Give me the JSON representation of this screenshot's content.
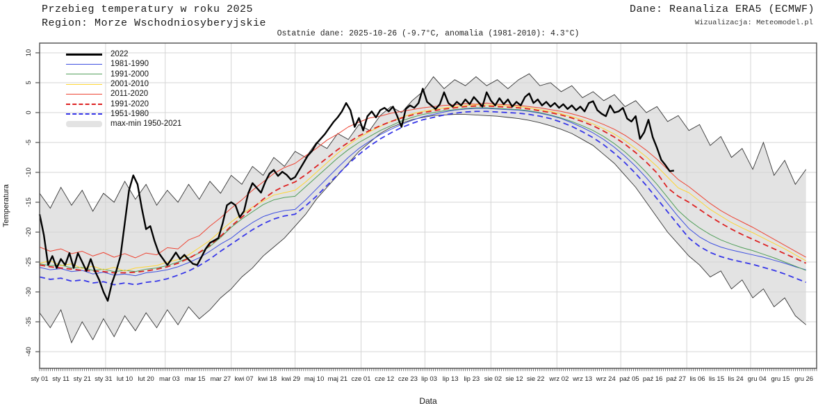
{
  "header": {
    "title": "Przebieg temperatury w roku 2025",
    "region": "Region: Morze Wschodniosyberyjskie",
    "source": "Dane: Reanaliza ERA5 (ECMWF)",
    "visualization": "Wizualizacja: Meteomodel.pl",
    "last_data": "Ostatnie dane: 2025-10-26 (-9.7°C, anomalia (1981-2010): 4.3°C)"
  },
  "chart_data": {
    "type": "line",
    "title": "Przebieg temperatury w roku 2025",
    "xlabel": "Data",
    "ylabel": "Temperatura",
    "ylim": [
      -42.5,
      12
    ],
    "days_in_year": 365,
    "grid": true,
    "legend_position": "top-left",
    "yticks": [
      10,
      5,
      0,
      -5,
      -10,
      -15,
      -20,
      -25,
      -30,
      -35,
      -40
    ],
    "xticks": {
      "days": [
        0,
        10,
        20,
        30,
        40,
        50,
        61,
        73,
        85,
        96,
        107,
        118,
        129,
        140,
        151,
        162,
        173,
        183,
        193,
        203,
        213,
        223,
        233,
        244,
        255,
        266,
        277,
        288,
        299,
        309,
        318,
        327,
        337,
        348,
        359
      ],
      "labels": [
        "sty 01",
        "sty 11",
        "sty 21",
        "sty 31",
        "lut 10",
        "lut 20",
        "mar 03",
        "mar 15",
        "mar 27",
        "kwi 07",
        "kwi 18",
        "kwi 29",
        "maj 10",
        "maj 21",
        "cze 01",
        "cze 12",
        "cze 23",
        "lip 03",
        "lip 13",
        "lip 23",
        "sie 02",
        "sie 12",
        "sie 22",
        "wrz 02",
        "wrz 13",
        "wrz 24",
        "paź 05",
        "paź 16",
        "paź 27",
        "lis 06",
        "lis 15",
        "lis 24",
        "gru 04",
        "gru 15",
        "gru 26"
      ]
    },
    "month_grid_days": [
      31,
      59,
      90,
      120,
      151,
      181,
      212,
      243,
      273,
      304,
      334
    ],
    "band": {
      "name": "max-min 1950-2021",
      "fill": "#e3e3e3",
      "edge_color": "#333333",
      "step_days": 5,
      "max": [
        -13.5,
        -16.0,
        -12.5,
        -15.5,
        -13.0,
        -16.5,
        -13.5,
        -15.0,
        -11.5,
        -14.5,
        -12.0,
        -15.5,
        -13.0,
        -15.0,
        -12.0,
        -14.5,
        -11.5,
        -13.5,
        -10.5,
        -12.0,
        -9.0,
        -10.5,
        -7.5,
        -9.0,
        -6.5,
        -7.5,
        -5.0,
        -6.0,
        -3.5,
        -4.5,
        -2.0,
        -3.0,
        -0.5,
        1.0,
        0.0,
        2.0,
        3.5,
        6.0,
        4.0,
        5.5,
        4.5,
        6.0,
        4.5,
        5.5,
        4.0,
        5.5,
        6.5,
        4.5,
        5.0,
        3.5,
        4.5,
        2.5,
        3.5,
        2.0,
        3.0,
        1.0,
        2.0,
        0.0,
        1.0,
        -1.5,
        -0.5,
        -3.0,
        -2.0,
        -5.5,
        -4.0,
        -7.5,
        -6.0,
        -9.5,
        -5.0,
        -10.5,
        -8.0,
        -12.0,
        -9.5
      ],
      "min": [
        -33.5,
        -36.0,
        -33.0,
        -38.5,
        -35.0,
        -38.0,
        -34.5,
        -37.5,
        -34.0,
        -36.5,
        -33.5,
        -36.0,
        -33.0,
        -35.5,
        -32.5,
        -34.5,
        -33.0,
        -31.0,
        -29.5,
        -27.5,
        -26.0,
        -24.0,
        -22.5,
        -21.0,
        -19.0,
        -17.0,
        -14.5,
        -12.5,
        -10.5,
        -8.5,
        -6.5,
        -5.0,
        -3.5,
        -2.5,
        -1.8,
        -1.2,
        -0.8,
        -0.5,
        -0.4,
        -0.3,
        -0.3,
        -0.4,
        -0.5,
        -0.6,
        -0.8,
        -1.0,
        -1.3,
        -1.7,
        -2.2,
        -2.8,
        -3.5,
        -4.5,
        -5.5,
        -7.0,
        -8.5,
        -10.5,
        -12.5,
        -15.0,
        -17.5,
        -20.0,
        -22.0,
        -24.0,
        -25.5,
        -27.5,
        -26.5,
        -29.5,
        -28.0,
        -31.0,
        -29.5,
        -32.5,
        -31.0,
        -34.0,
        -35.5
      ]
    },
    "series": [
      {
        "name": "2022",
        "color": "#000000",
        "style": "solid",
        "role": "current-year",
        "step_days": 2,
        "values": [
          -17.0,
          -20.5,
          -25.5,
          -24.0,
          -26.0,
          -24.5,
          -25.5,
          -23.5,
          -26.0,
          -23.5,
          -25.0,
          -26.5,
          -24.5,
          -26.5,
          -28.0,
          -30.0,
          -31.5,
          -28.5,
          -26.5,
          -24.0,
          -18.5,
          -13.0,
          -10.5,
          -12.0,
          -16.0,
          -19.5,
          -19.0,
          -21.5,
          -23.5,
          -24.5,
          -25.5,
          -24.5,
          -23.4,
          -24.5,
          -23.8,
          -24.6,
          -25.3,
          -25.5,
          -24.2,
          -22.8,
          -21.8,
          -21.4,
          -21.0,
          -18.5,
          -15.5,
          -15.0,
          -15.5,
          -17.5,
          -16.5,
          -13.5,
          -11.8,
          -12.6,
          -13.4,
          -11.6,
          -10.2,
          -9.6,
          -10.6,
          -9.9,
          -10.4,
          -11.2,
          -10.8,
          -9.6,
          -8.4,
          -7.2,
          -6.4,
          -5.2,
          -4.4,
          -3.6,
          -2.6,
          -1.6,
          -0.8,
          0.2,
          1.6,
          0.4,
          -2.4,
          -0.9,
          -3.0,
          -0.6,
          0.2,
          -0.8,
          0.4,
          0.8,
          0.2,
          1.0,
          -0.6,
          -2.4,
          0.6,
          1.2,
          0.8,
          1.6,
          4.0,
          1.8,
          1.2,
          0.6,
          1.4,
          3.4,
          1.6,
          1.0,
          1.8,
          1.2,
          2.2,
          1.4,
          2.6,
          1.8,
          1.0,
          3.4,
          2.0,
          1.2,
          2.4,
          1.4,
          2.2,
          1.0,
          1.8,
          1.2,
          2.6,
          3.2,
          1.6,
          2.2,
          1.2,
          1.8,
          1.0,
          1.6,
          0.8,
          1.4,
          0.6,
          1.2,
          0.4,
          1.0,
          0.2,
          1.6,
          1.9,
          0.4,
          -0.2,
          -0.6,
          1.2,
          0.0,
          0.2,
          0.8,
          -1.0,
          -1.5,
          -0.6,
          -4.4,
          -3.3,
          -1.2,
          -4.1,
          -5.9,
          -7.9,
          -8.8,
          -9.8,
          -9.7
        ]
      },
      {
        "name": "1981-1990",
        "color": "#3d4fe0",
        "style": "solid",
        "role": "decade-mean",
        "step_days": 5,
        "values": [
          -25.9,
          -26.3,
          -26.1,
          -26.6,
          -26.4,
          -27.0,
          -26.7,
          -27.2,
          -27.0,
          -27.3,
          -26.8,
          -26.6,
          -26.3,
          -25.8,
          -25.1,
          -24.3,
          -23.2,
          -22.0,
          -21.0,
          -19.6,
          -18.4,
          -17.4,
          -16.8,
          -16.4,
          -16.2,
          -14.6,
          -12.8,
          -11.0,
          -9.2,
          -7.5,
          -6.0,
          -4.8,
          -3.7,
          -2.8,
          -2.0,
          -1.3,
          -0.7,
          -0.3,
          0.1,
          0.4,
          0.6,
          0.7,
          0.7,
          0.6,
          0.5,
          0.4,
          0.2,
          -0.1,
          -0.5,
          -1.0,
          -1.7,
          -2.5,
          -3.4,
          -4.5,
          -5.8,
          -7.3,
          -9.0,
          -10.9,
          -13.0,
          -15.2,
          -17.4,
          -19.4,
          -20.8,
          -21.8,
          -22.5,
          -23.0,
          -23.4,
          -23.8,
          -24.2,
          -24.7,
          -25.2,
          -25.8,
          -26.3
        ]
      },
      {
        "name": "1991-2000",
        "color": "#4f9e58",
        "style": "solid",
        "role": "decade-mean",
        "step_days": 5,
        "values": [
          -25.3,
          -25.6,
          -25.5,
          -26.0,
          -25.9,
          -26.4,
          -26.2,
          -26.6,
          -26.4,
          -26.6,
          -26.2,
          -26.0,
          -25.6,
          -25.0,
          -24.3,
          -23.5,
          -22.4,
          -20.9,
          -19.2,
          -17.8,
          -16.6,
          -15.4,
          -14.6,
          -14.2,
          -14.0,
          -12.4,
          -10.8,
          -9.2,
          -7.6,
          -6.2,
          -5.0,
          -4.0,
          -3.0,
          -2.2,
          -1.4,
          -0.8,
          -0.3,
          0.0,
          0.3,
          0.5,
          0.7,
          0.8,
          0.8,
          0.7,
          0.6,
          0.5,
          0.3,
          0.0,
          -0.4,
          -0.9,
          -1.5,
          -2.2,
          -3.0,
          -4.0,
          -5.2,
          -6.6,
          -8.2,
          -10.0,
          -12.0,
          -14.2,
          -16.4,
          -18.0,
          -19.3,
          -20.4,
          -21.3,
          -22.0,
          -22.6,
          -23.1,
          -23.7,
          -24.3,
          -25.0,
          -25.7,
          -26.4
        ]
      },
      {
        "name": "2001-2010",
        "color": "#ffd633",
        "style": "solid",
        "role": "decade-mean",
        "step_days": 5,
        "values": [
          -25.2,
          -24.8,
          -25.6,
          -25.3,
          -26.1,
          -25.7,
          -26.3,
          -25.9,
          -26.5,
          -26.0,
          -25.8,
          -25.6,
          -25.0,
          -24.6,
          -23.8,
          -22.6,
          -21.4,
          -19.8,
          -18.3,
          -17.0,
          -15.8,
          -14.8,
          -13.8,
          -13.4,
          -13.0,
          -11.6,
          -10.0,
          -8.4,
          -6.8,
          -5.4,
          -4.2,
          -3.2,
          -2.3,
          -1.5,
          -0.8,
          -0.2,
          0.2,
          0.5,
          0.8,
          1.0,
          1.2,
          1.3,
          1.3,
          1.2,
          1.1,
          1.0,
          0.8,
          0.5,
          0.2,
          -0.2,
          -0.7,
          -1.2,
          -1.9,
          -2.7,
          -3.6,
          -4.7,
          -6.0,
          -7.4,
          -9.0,
          -10.8,
          -12.6,
          -13.4,
          -14.8,
          -16.2,
          -17.3,
          -18.4,
          -19.3,
          -20.1,
          -21.0,
          -21.9,
          -22.8,
          -23.8,
          -24.8
        ]
      },
      {
        "name": "2011-2020",
        "color": "#ee4433",
        "style": "solid",
        "role": "decade-mean",
        "step_days": 5,
        "values": [
          -22.5,
          -23.2,
          -22.8,
          -23.6,
          -23.2,
          -24.0,
          -23.4,
          -24.2,
          -23.6,
          -24.3,
          -23.5,
          -23.8,
          -22.6,
          -22.8,
          -21.3,
          -20.6,
          -19.0,
          -17.6,
          -16.0,
          -14.6,
          -13.0,
          -11.6,
          -10.2,
          -9.2,
          -8.5,
          -7.2,
          -6.0,
          -4.6,
          -3.6,
          -2.4,
          -1.6,
          -0.9,
          -0.6,
          -0.1,
          0.2,
          0.5,
          0.8,
          1.0,
          1.2,
          1.3,
          1.5,
          1.4,
          1.6,
          1.4,
          1.3,
          1.2,
          1.0,
          0.8,
          0.5,
          0.2,
          -0.2,
          -0.7,
          -1.3,
          -2.0,
          -2.8,
          -3.8,
          -5.0,
          -6.3,
          -7.8,
          -9.5,
          -11.2,
          -12.4,
          -13.8,
          -15.2,
          -16.4,
          -17.4,
          -18.3,
          -19.2,
          -20.2,
          -21.2,
          -22.2,
          -23.2,
          -24.2
        ]
      },
      {
        "name": "1991-2020",
        "color": "#dd2020",
        "style": "dashed",
        "role": "climate-normal",
        "step_days": 5,
        "values": [
          -25.5,
          -25.8,
          -26.0,
          -26.2,
          -26.4,
          -26.5,
          -26.6,
          -26.8,
          -26.8,
          -26.7,
          -26.5,
          -26.2,
          -25.8,
          -25.2,
          -24.4,
          -23.4,
          -22.2,
          -20.7,
          -19.0,
          -17.5,
          -16.0,
          -14.5,
          -13.2,
          -12.3,
          -11.6,
          -10.4,
          -9.0,
          -7.6,
          -6.2,
          -5.0,
          -3.9,
          -3.0,
          -2.2,
          -1.5,
          -0.9,
          -0.4,
          0.0,
          0.3,
          0.6,
          0.8,
          1.0,
          1.1,
          1.1,
          1.0,
          0.9,
          0.8,
          0.6,
          0.3,
          0.0,
          -0.4,
          -0.9,
          -1.5,
          -2.2,
          -3.1,
          -4.1,
          -5.3,
          -6.7,
          -8.3,
          -10.1,
          -12.6,
          -14.0,
          -15.0,
          -16.2,
          -17.4,
          -18.5,
          -19.5,
          -20.4,
          -21.2,
          -22.0,
          -22.8,
          -23.6,
          -24.4,
          -25.2
        ]
      },
      {
        "name": "1951-1980",
        "color": "#3535e8",
        "style": "dashed",
        "role": "climate-normal",
        "step_days": 5,
        "values": [
          -27.5,
          -27.9,
          -27.7,
          -28.2,
          -28.0,
          -28.5,
          -28.3,
          -28.8,
          -28.5,
          -28.8,
          -28.4,
          -28.2,
          -27.8,
          -27.2,
          -26.5,
          -25.6,
          -24.5,
          -23.2,
          -22.0,
          -20.8,
          -19.6,
          -18.6,
          -17.8,
          -17.3,
          -17.0,
          -15.6,
          -14.0,
          -12.2,
          -10.4,
          -8.6,
          -7.0,
          -5.6,
          -4.4,
          -3.4,
          -2.5,
          -1.8,
          -1.2,
          -0.8,
          -0.4,
          -0.1,
          0.1,
          0.2,
          0.2,
          0.1,
          0.0,
          -0.1,
          -0.3,
          -0.6,
          -1.0,
          -1.6,
          -2.3,
          -3.2,
          -4.2,
          -5.4,
          -6.8,
          -8.4,
          -10.2,
          -12.2,
          -14.4,
          -16.6,
          -18.8,
          -21.0,
          -22.4,
          -23.4,
          -24.1,
          -24.6,
          -25.0,
          -25.4,
          -25.9,
          -26.4,
          -27.0,
          -27.7,
          -28.4
        ]
      }
    ],
    "colors": {
      "grid": "#d4d4d4",
      "axis": "#4d4d4d",
      "tick_text": "#222222"
    }
  }
}
